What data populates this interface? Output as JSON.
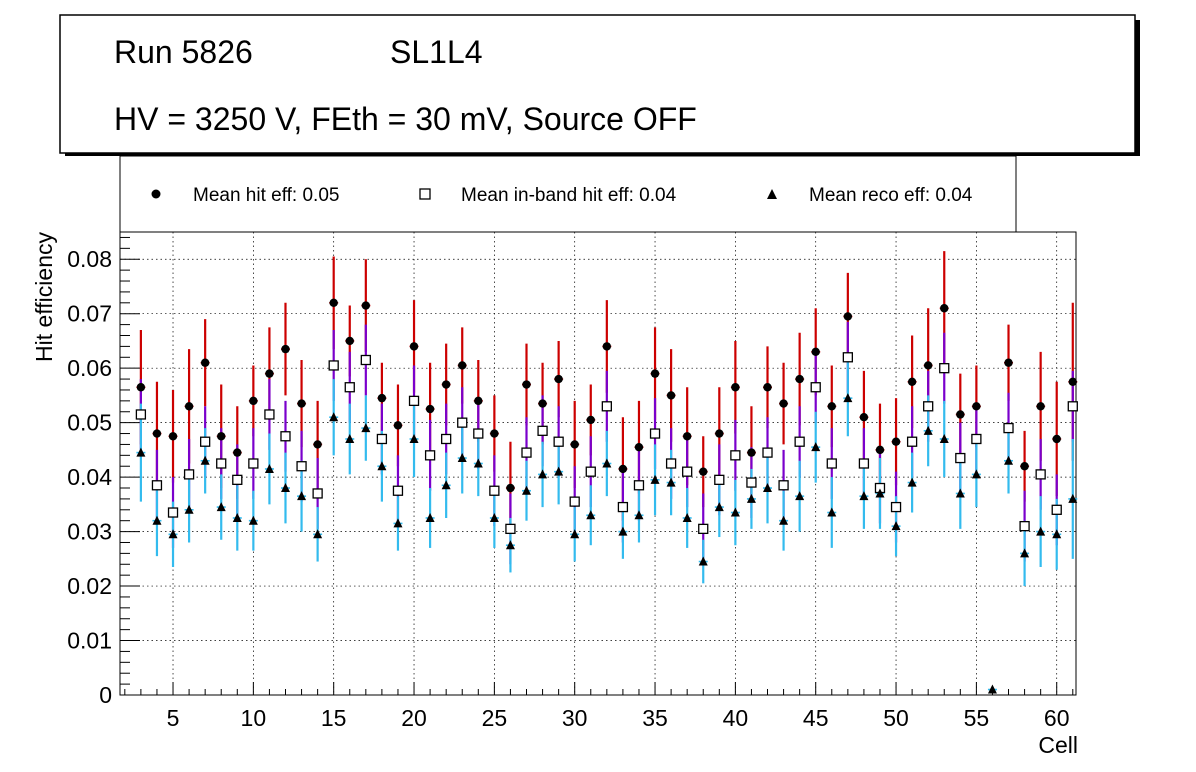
{
  "title_box": {
    "run_label": "Run 5826",
    "layer_label": "SL1L4",
    "conditions": "HV = 3250 V, FEth = 30 mV, Source OFF"
  },
  "legend": {
    "hit": "Mean hit  eff: 0.05",
    "inband": "Mean in-band hit eff: 0.04",
    "reco": "Mean reco eff: 0.04"
  },
  "colors": {
    "hit_error": "#cc0000",
    "inband_error": "#7a00cc",
    "reco_error": "#33bbee",
    "grid": "#000000"
  },
  "chart_data": {
    "type": "scatter",
    "xlabel": "Cell",
    "ylabel": "Hit efficiency",
    "xlim": [
      1.7,
      61.2
    ],
    "ylim": [
      0,
      0.085
    ],
    "grid": true,
    "x_ticks": [
      5,
      10,
      15,
      20,
      25,
      30,
      35,
      40,
      45,
      50,
      55,
      60
    ],
    "x_tick_labels": [
      "5",
      "10",
      "15",
      "20",
      "25",
      "30",
      "35",
      "40",
      "45",
      "50",
      "55",
      "60"
    ],
    "y_ticks": [
      0,
      0.01,
      0.02,
      0.03,
      0.04,
      0.05,
      0.06,
      0.07,
      0.08
    ],
    "y_tick_labels": [
      "0",
      "0.01",
      "0.02",
      "0.03",
      "0.04",
      "0.05",
      "0.06",
      "0.07",
      "0.08"
    ],
    "x": [
      3,
      4,
      5,
      6,
      7,
      8,
      9,
      10,
      11,
      12,
      13,
      14,
      15,
      16,
      17,
      18,
      19,
      20,
      21,
      22,
      23,
      24,
      25,
      26,
      27,
      28,
      29,
      30,
      31,
      32,
      33,
      34,
      35,
      36,
      37,
      38,
      39,
      40,
      41,
      42,
      43,
      44,
      45,
      46,
      47,
      48,
      49,
      50,
      51,
      52,
      53,
      54,
      55,
      56,
      57,
      58,
      59,
      60,
      61
    ],
    "series": [
      {
        "name": "Mean hit  eff: 0.05",
        "marker": "circle",
        "values": [
          0.0565,
          0.048,
          0.0475,
          0.053,
          0.061,
          0.0475,
          0.0445,
          0.054,
          0.059,
          0.0635,
          0.0535,
          0.046,
          0.072,
          0.065,
          0.0715,
          0.0545,
          0.0495,
          0.064,
          0.0525,
          0.057,
          0.0605,
          0.054,
          0.048,
          0.038,
          0.057,
          0.0535,
          0.058,
          0.046,
          0.0505,
          0.064,
          0.0415,
          0.0455,
          0.059,
          0.055,
          0.0475,
          0.041,
          0.048,
          0.0565,
          0.0445,
          0.0565,
          0.0535,
          0.058,
          0.063,
          0.053,
          0.0695,
          0.051,
          0.045,
          0.0465,
          0.0575,
          0.0605,
          0.071,
          0.0515,
          0.053,
          null,
          0.061,
          0.042,
          0.053,
          0.047,
          0.0575
        ],
        "errors": [
          0.0105,
          0.0095,
          0.0085,
          0.0105,
          0.008,
          0.0095,
          0.0085,
          0.0065,
          0.0085,
          0.0085,
          0.008,
          0.008,
          0.0085,
          0.0065,
          0.0085,
          0.0065,
          0.0075,
          0.0085,
          0.0085,
          0.0075,
          0.007,
          0.0075,
          0.007,
          0.0085,
          0.0075,
          0.0075,
          0.007,
          0.008,
          0.0065,
          0.0085,
          0.0095,
          0.0085,
          0.0085,
          0.0085,
          0.009,
          0.0065,
          0.0085,
          0.0085,
          0.0085,
          0.0075,
          0.0075,
          0.0085,
          0.008,
          0.0075,
          0.008,
          0.0085,
          0.0085,
          0.008,
          0.0085,
          0.0105,
          0.0105,
          0.0075,
          0.0075,
          null,
          0.007,
          0.0065,
          0.01,
          0.0105,
          0.0145
        ]
      },
      {
        "name": "Mean in-band hit eff: 0.04",
        "marker": "open-square",
        "values": [
          0.0515,
          0.0385,
          0.0335,
          0.0405,
          0.0465,
          0.0425,
          0.0395,
          0.0425,
          0.0515,
          0.0475,
          0.042,
          0.037,
          0.0605,
          0.0565,
          0.0615,
          0.047,
          0.0375,
          0.054,
          0.044,
          0.047,
          0.05,
          0.048,
          0.0375,
          0.0305,
          0.0445,
          0.0485,
          0.0465,
          0.0355,
          0.041,
          0.053,
          0.0345,
          0.0385,
          0.048,
          0.0425,
          0.041,
          0.0305,
          0.0395,
          0.044,
          0.039,
          0.0445,
          0.0385,
          0.0465,
          0.0565,
          0.0425,
          0.062,
          0.0425,
          0.038,
          0.0345,
          0.0465,
          0.053,
          0.06,
          0.0435,
          0.047,
          null,
          0.049,
          0.031,
          0.0405,
          0.034,
          0.053
        ],
        "errors": [
          0.0065,
          0.0065,
          0.0065,
          0.0065,
          0.0065,
          0.0065,
          0.0065,
          0.0065,
          0.0065,
          0.0065,
          0.0065,
          0.0065,
          0.0065,
          0.0065,
          0.0065,
          0.0065,
          0.0065,
          0.0065,
          0.0065,
          0.0065,
          0.0065,
          0.0065,
          0.0065,
          0.0065,
          0.0065,
          0.0065,
          0.0065,
          0.0065,
          0.0065,
          0.0065,
          0.0065,
          0.0065,
          0.0065,
          0.0065,
          0.0065,
          0.0065,
          0.0065,
          0.0065,
          0.0065,
          0.0065,
          0.0065,
          0.0065,
          0.0065,
          0.0065,
          0.0065,
          0.0065,
          0.0065,
          0.0065,
          0.0065,
          0.0065,
          0.0065,
          0.0065,
          0.0065,
          null,
          0.0065,
          0.0065,
          0.0065,
          0.0065,
          0.0065
        ]
      },
      {
        "name": "Mean reco eff: 0.04",
        "marker": "triangle",
        "values": [
          0.0445,
          0.032,
          0.0295,
          0.034,
          0.043,
          0.0345,
          0.0325,
          0.032,
          0.0415,
          0.038,
          0.0365,
          0.0295,
          0.051,
          0.047,
          0.049,
          0.042,
          0.0315,
          0.047,
          0.0325,
          0.0385,
          0.0435,
          0.0425,
          0.0325,
          0.0275,
          0.0375,
          0.0405,
          0.041,
          0.0295,
          0.033,
          0.0425,
          0.03,
          0.033,
          0.0395,
          0.039,
          0.0325,
          0.0245,
          0.0345,
          0.0335,
          0.036,
          0.038,
          0.032,
          0.0365,
          0.0455,
          0.0335,
          0.0545,
          0.0365,
          0.037,
          0.031,
          0.039,
          0.0485,
          0.047,
          0.037,
          0.0405,
          0.001,
          0.043,
          0.026,
          0.03,
          0.0295,
          0.036
        ],
        "errors": [
          0.009,
          0.0065,
          0.006,
          0.006,
          0.006,
          0.006,
          0.006,
          0.0055,
          0.0065,
          0.0065,
          0.0065,
          0.005,
          0.007,
          0.0065,
          0.006,
          0.0065,
          0.005,
          0.007,
          0.0055,
          0.006,
          0.0065,
          0.006,
          0.0055,
          0.005,
          0.0055,
          0.006,
          0.006,
          0.005,
          0.0055,
          0.006,
          0.005,
          0.005,
          0.0065,
          0.006,
          0.0055,
          0.004,
          0.0055,
          0.006,
          0.0055,
          0.0065,
          0.0055,
          0.0065,
          0.0065,
          0.0065,
          0.007,
          0.006,
          0.0065,
          0.0055,
          0.0055,
          0.0065,
          0.007,
          0.0065,
          0.006,
          0.0005,
          0.006,
          0.006,
          0.0065,
          0.0065,
          0.011
        ]
      }
    ]
  }
}
